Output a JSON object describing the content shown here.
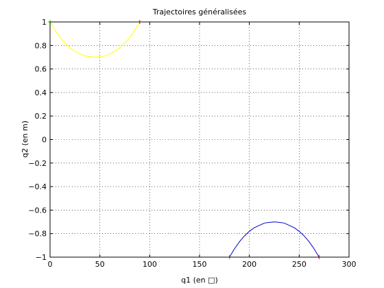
{
  "chart_data": {
    "type": "line",
    "title": "Trajectoires généralisées",
    "xlabel": "q1 (en □)",
    "ylabel": "q2 (en m)",
    "xlim": [
      0,
      300
    ],
    "ylim": [
      -1,
      1
    ],
    "xticks": [
      0,
      50,
      100,
      150,
      200,
      250,
      300
    ],
    "yticks": [
      -1,
      -0.8,
      -0.6,
      -0.4,
      -0.2,
      0,
      0.2,
      0.4,
      0.6,
      0.8,
      1
    ],
    "xtick_labels": [
      "0",
      "50",
      "100",
      "150",
      "200",
      "250",
      "300"
    ],
    "ytick_labels": [
      "−1",
      "−0.8",
      "−0.6",
      "−0.4",
      "−0.2",
      "0",
      "0.2",
      "0.4",
      "0.6",
      "0.8",
      "1"
    ],
    "grid": true,
    "series": [
      {
        "color": "#ffff00",
        "x": [
          0,
          5,
          10,
          15,
          20,
          25,
          30,
          35,
          40,
          45,
          50,
          55,
          60,
          65,
          70,
          75,
          80,
          85,
          90
        ],
        "y": [
          1.0,
          0.93,
          0.87,
          0.82,
          0.78,
          0.75,
          0.73,
          0.71,
          0.705,
          0.7,
          0.705,
          0.71,
          0.73,
          0.75,
          0.78,
          0.82,
          0.87,
          0.93,
          1.0
        ]
      },
      {
        "color": "#0000cc",
        "x": [
          180,
          185,
          190,
          195,
          200,
          205,
          210,
          215,
          220,
          225,
          230,
          235,
          240,
          245,
          250,
          255,
          260,
          265,
          270
        ],
        "y": [
          -1.0,
          -0.93,
          -0.87,
          -0.82,
          -0.78,
          -0.75,
          -0.73,
          -0.71,
          -0.705,
          -0.7,
          -0.705,
          -0.71,
          -0.73,
          -0.75,
          -0.78,
          -0.82,
          -0.87,
          -0.93,
          -1.0
        ]
      }
    ],
    "start_markers": [
      {
        "x": 0,
        "y": 1,
        "color": "#00cc00"
      },
      {
        "x": 180,
        "y": -1,
        "color": "#00cc00"
      }
    ],
    "end_markers": [
      {
        "x": 90,
        "y": 1,
        "color": "#ff0000"
      },
      {
        "x": 270,
        "y": -1,
        "color": "#ff0000"
      }
    ]
  }
}
